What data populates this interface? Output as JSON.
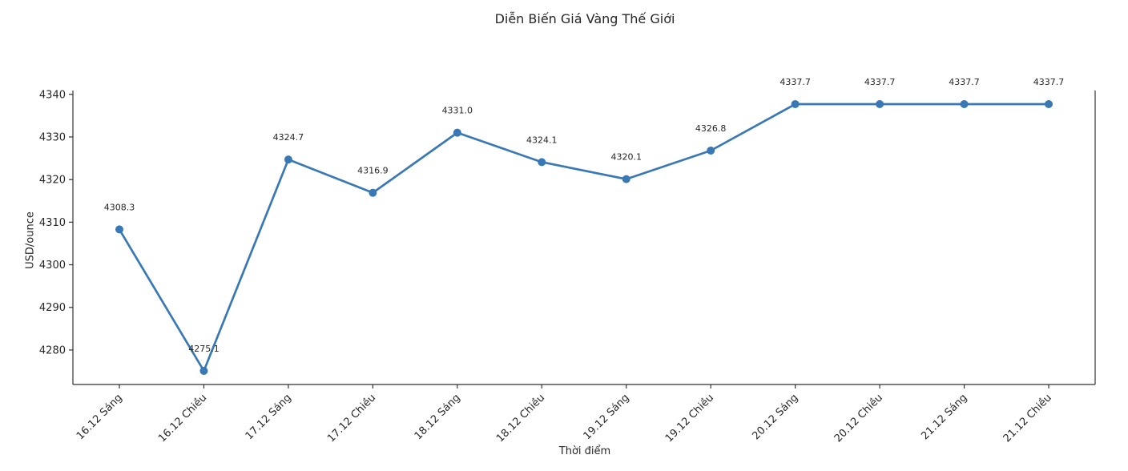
{
  "chart_data": {
    "type": "line",
    "title": "Diễn Biến Giá Vàng Thế Giới",
    "xlabel": "Thời điểm",
    "ylabel": "USD/ounce",
    "categories": [
      "16.12 Sáng",
      "16.12 Chiều",
      "17.12 Sáng",
      "17.12 Chiều",
      "18.12 Sáng",
      "18.12 Chiều",
      "19.12 Sáng",
      "19.12 Chiều",
      "20.12 Sáng",
      "20.12 Chiều",
      "21.12 Sáng",
      "21.12 Chiều"
    ],
    "values": [
      4308.3,
      4275.1,
      4324.7,
      4316.9,
      4331.0,
      4324.1,
      4320.1,
      4326.8,
      4337.7,
      4337.7,
      4337.7,
      4337.7
    ],
    "point_label_decimals": 1,
    "yticks": [
      4280,
      4290,
      4300,
      4310,
      4320,
      4330,
      4340
    ],
    "ylim": [
      4271.9,
      4340.9
    ],
    "grid": false,
    "legend": null,
    "line_color": "#3878b4",
    "marker": "circle",
    "text_color": "#262626",
    "spine_color": "#333333",
    "xtick_rotation_deg": 45
  }
}
